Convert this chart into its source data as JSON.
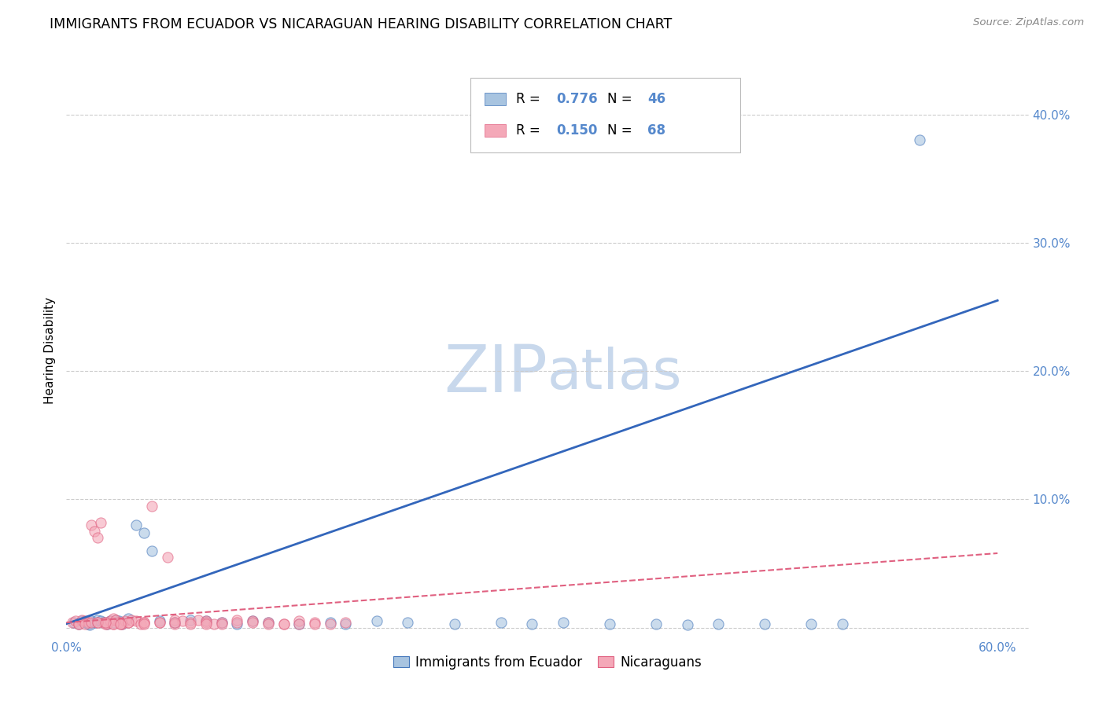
{
  "title": "IMMIGRANTS FROM ECUADOR VS NICARAGUAN HEARING DISABILITY CORRELATION CHART",
  "source": "Source: ZipAtlas.com",
  "ylabel": "Hearing Disability",
  "xlim": [
    0.0,
    0.62
  ],
  "ylim": [
    -0.008,
    0.44
  ],
  "xtick_positions": [
    0.0,
    0.6
  ],
  "xtick_labels": [
    "0.0%",
    "60.0%"
  ],
  "yticks": [
    0.0,
    0.1,
    0.2,
    0.3,
    0.4
  ],
  "ytick_labels": [
    "",
    "10.0%",
    "20.0%",
    "30.0%",
    "40.0%"
  ],
  "blue_color": "#A8C4E0",
  "pink_color": "#F4A8B8",
  "blue_edge_color": "#4477BB",
  "pink_edge_color": "#E06080",
  "blue_line_color": "#3366BB",
  "pink_line_color": "#E06080",
  "legend_R_blue": "R = 0.776",
  "legend_N_blue": "N = 46",
  "legend_R_pink": "R = 0.150",
  "legend_N_pink": "N = 68",
  "legend_label_blue": "Immigrants from Ecuador",
  "legend_label_pink": "Nicaraguans",
  "watermark": "ZIPatlas",
  "background_color": "#FFFFFF",
  "grid_color": "#CCCCCC",
  "blue_scatter_x": [
    0.005,
    0.008,
    0.01,
    0.012,
    0.014,
    0.016,
    0.018,
    0.02,
    0.022,
    0.024,
    0.026,
    0.028,
    0.03,
    0.032,
    0.034,
    0.036,
    0.04,
    0.045,
    0.05,
    0.055,
    0.06,
    0.07,
    0.08,
    0.09,
    0.1,
    0.11,
    0.12,
    0.13,
    0.15,
    0.17,
    0.18,
    0.2,
    0.22,
    0.25,
    0.28,
    0.3,
    0.32,
    0.35,
    0.38,
    0.4,
    0.42,
    0.45,
    0.48,
    0.5,
    0.55,
    0.015
  ],
  "blue_scatter_y": [
    0.004,
    0.003,
    0.005,
    0.004,
    0.003,
    0.005,
    0.004,
    0.006,
    0.005,
    0.004,
    0.003,
    0.005,
    0.004,
    0.006,
    0.005,
    0.003,
    0.007,
    0.08,
    0.074,
    0.06,
    0.005,
    0.004,
    0.006,
    0.005,
    0.004,
    0.003,
    0.005,
    0.004,
    0.003,
    0.004,
    0.003,
    0.005,
    0.004,
    0.003,
    0.004,
    0.003,
    0.004,
    0.003,
    0.003,
    0.002,
    0.003,
    0.003,
    0.003,
    0.003,
    0.38,
    0.002
  ],
  "pink_scatter_x": [
    0.004,
    0.006,
    0.008,
    0.01,
    0.012,
    0.014,
    0.016,
    0.018,
    0.02,
    0.022,
    0.024,
    0.026,
    0.028,
    0.03,
    0.032,
    0.034,
    0.036,
    0.038,
    0.04,
    0.042,
    0.045,
    0.048,
    0.05,
    0.055,
    0.06,
    0.065,
    0.07,
    0.075,
    0.08,
    0.085,
    0.09,
    0.095,
    0.1,
    0.11,
    0.12,
    0.13,
    0.14,
    0.15,
    0.16,
    0.17,
    0.008,
    0.012,
    0.016,
    0.02,
    0.025,
    0.03,
    0.035,
    0.04,
    0.05,
    0.06,
    0.07,
    0.08,
    0.09,
    0.1,
    0.12,
    0.14,
    0.16,
    0.18,
    0.03,
    0.05,
    0.07,
    0.09,
    0.11,
    0.13,
    0.15,
    0.02,
    0.025,
    0.035
  ],
  "pink_scatter_y": [
    0.004,
    0.005,
    0.003,
    0.006,
    0.005,
    0.004,
    0.08,
    0.075,
    0.07,
    0.082,
    0.004,
    0.003,
    0.005,
    0.007,
    0.006,
    0.004,
    0.003,
    0.005,
    0.004,
    0.006,
    0.005,
    0.003,
    0.004,
    0.095,
    0.004,
    0.055,
    0.006,
    0.005,
    0.004,
    0.006,
    0.005,
    0.003,
    0.004,
    0.006,
    0.005,
    0.004,
    0.003,
    0.005,
    0.004,
    0.003,
    0.003,
    0.003,
    0.004,
    0.004,
    0.003,
    0.003,
    0.003,
    0.004,
    0.004,
    0.004,
    0.003,
    0.003,
    0.004,
    0.003,
    0.004,
    0.003,
    0.003,
    0.004,
    0.003,
    0.003,
    0.004,
    0.003,
    0.004,
    0.003,
    0.003,
    0.004,
    0.004,
    0.003
  ],
  "blue_line_x": [
    0.0,
    0.6
  ],
  "blue_line_y": [
    0.003,
    0.255
  ],
  "pink_line_x": [
    0.0,
    0.6
  ],
  "pink_line_y": [
    0.004,
    0.058
  ],
  "title_fontsize": 12.5,
  "axis_tick_fontsize": 11,
  "ylabel_fontsize": 11,
  "legend_fontsize": 12,
  "watermark_fontsize": 60,
  "watermark_color": "#C8D8EC",
  "tick_color": "#5588CC",
  "value_color": "#5588CC",
  "label_color": "#333333"
}
